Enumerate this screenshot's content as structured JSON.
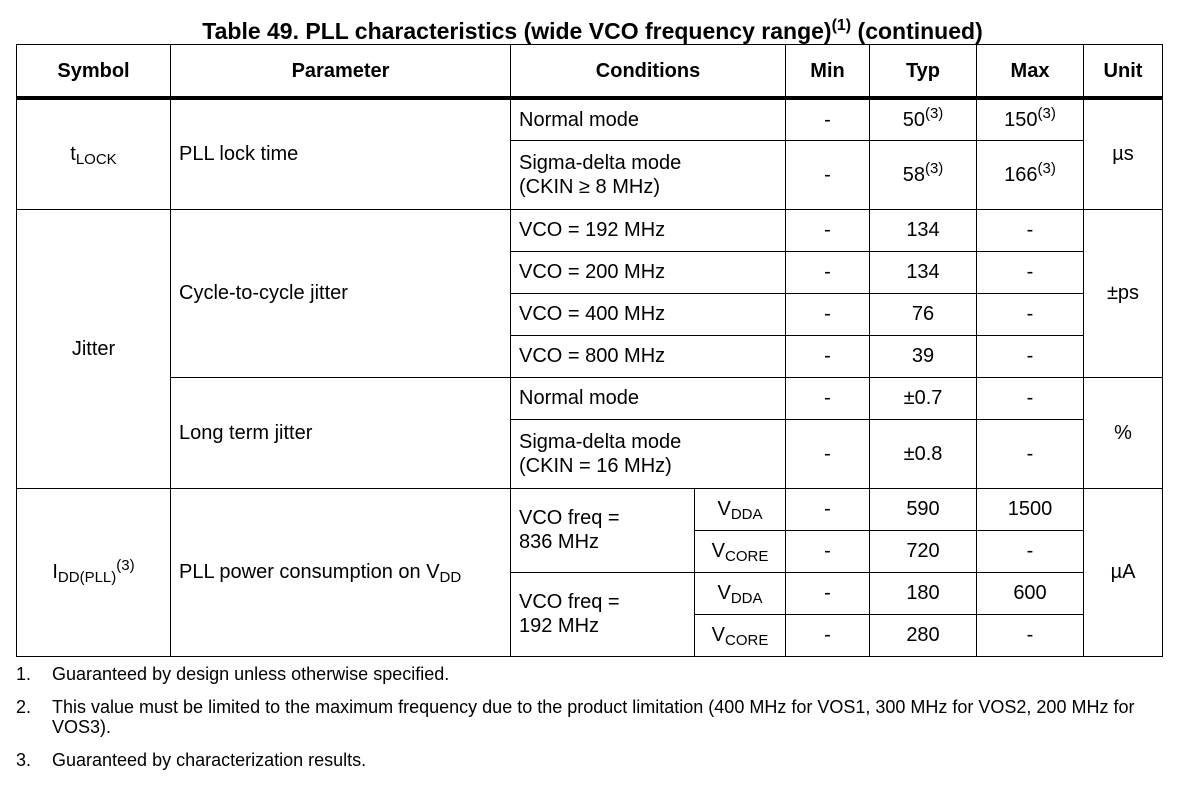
{
  "title": {
    "text": "Table 49. PLL characteristics (wide VCO frequency range)",
    "ref": "(1)",
    "suffix": "(continued)"
  },
  "headers": {
    "symbol": "Symbol",
    "parameter": "Parameter",
    "conditions": "Conditions",
    "min": "Min",
    "typ": "Typ",
    "max": "Max",
    "unit": "Unit"
  },
  "tlock": {
    "symbol_main": "t",
    "symbol_sub": "LOCK",
    "parameter": "PLL lock time",
    "unit": "µs",
    "rows": [
      {
        "condition": "Normal mode",
        "min": "-",
        "typ": "50",
        "typ_ref": "(3)",
        "max": "150",
        "max_ref": "(3)"
      },
      {
        "condition_line1": "Sigma-delta mode",
        "condition_line2": "(CKIN  ≥  8 MHz)",
        "min": "-",
        "typ": "58",
        "typ_ref": "(3)",
        "max": "166",
        "max_ref": "(3)"
      }
    ]
  },
  "jitter": {
    "symbol": "Jitter",
    "cycle": {
      "parameter": "Cycle-to-cycle jitter",
      "unit": "±ps",
      "rows": [
        {
          "condition": "VCO = 192 MHz",
          "min": "-",
          "typ": "134",
          "max": "-"
        },
        {
          "condition": "VCO = 200 MHz",
          "min": "-",
          "typ": "134",
          "max": "-"
        },
        {
          "condition": "VCO = 400 MHz",
          "min": "-",
          "typ": "76",
          "max": "-"
        },
        {
          "condition": "VCO = 800 MHz",
          "min": "-",
          "typ": "39",
          "max": "-"
        }
      ]
    },
    "longterm": {
      "parameter": "Long term jitter",
      "unit": "%",
      "rows": [
        {
          "condition": "Normal mode",
          "min": "-",
          "typ": "±0.7",
          "max": "-"
        },
        {
          "condition_line1": "Sigma-delta mode",
          "condition_line2": "(CKIN = 16 MHz)",
          "min": "-",
          "typ": "±0.8",
          "max": "-"
        }
      ]
    }
  },
  "idd": {
    "symbol_main": "I",
    "symbol_sub": "DD(PLL)",
    "symbol_ref": "(3)",
    "parameter_main": "PLL power consumption on V",
    "parameter_sub": "DD",
    "unit": "µA",
    "groups": [
      {
        "condition_line1": "VCO freq =",
        "condition_line2": "836 MHz",
        "rails": [
          {
            "main": "V",
            "sub": "DDA",
            "min": "-",
            "typ": "590",
            "max": "1500"
          },
          {
            "main": "V",
            "sub": "CORE",
            "min": "-",
            "typ": "720",
            "max": "-"
          }
        ]
      },
      {
        "condition_line1": "VCO freq =",
        "condition_line2": "192 MHz",
        "rails": [
          {
            "main": "V",
            "sub": "DDA",
            "min": "-",
            "typ": "180",
            "max": "600"
          },
          {
            "main": "V",
            "sub": "CORE",
            "min": "-",
            "typ": "280",
            "max": "-"
          }
        ]
      }
    ]
  },
  "notes": [
    {
      "num": "1.",
      "text": "Guaranteed by design unless otherwise specified."
    },
    {
      "num": "2.",
      "text": "This value must be limited to the maximum frequency due to the product limitation (400 MHz for VOS1, 300 MHz for VOS2, 200 MHz for VOS3)."
    },
    {
      "num": "3.",
      "text": "Guaranteed by characterization results."
    }
  ]
}
